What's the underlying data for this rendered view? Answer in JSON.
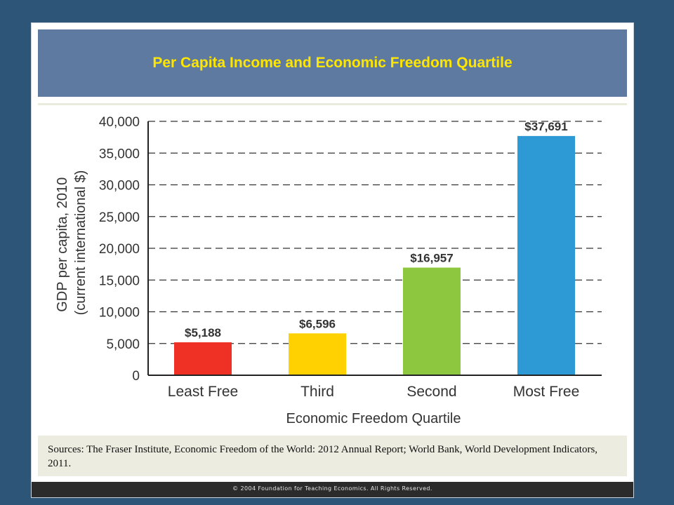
{
  "title": "Per Capita Income and Economic Freedom Quartile",
  "sources": "Sources:  The Fraser Institute, Economic Freedom of the World: 2012 Annual Report; World Bank, World Development Indicators, 2011.",
  "copyright": "© 2004 Foundation for Teaching Economics. All Rights Reserved.",
  "colors": {
    "background": "#2d5577",
    "title_band": "#5e7aa0",
    "title_text": "#ffe600"
  },
  "chart_data": {
    "type": "bar",
    "categories": [
      "Least Free",
      "Third",
      "Second",
      "Most Free"
    ],
    "values": [
      5188,
      6596,
      16957,
      37691
    ],
    "value_labels": [
      "$5,188",
      "$6,596",
      "$16,957",
      "$37,691"
    ],
    "bar_colors": [
      "#ee3124",
      "#ffd100",
      "#8dc63f",
      "#2e9ad5"
    ],
    "title": "Per Capita Income and Economic Freedom Quartile",
    "xlabel": "Economic Freedom Quartile",
    "ylabel_lines": [
      "GDP per capita, 2010",
      "(current international $)"
    ],
    "ylim": [
      0,
      40000
    ],
    "yticks": [
      0,
      5000,
      10000,
      15000,
      20000,
      25000,
      30000,
      35000,
      40000
    ],
    "ytick_labels": [
      "0",
      "5,000",
      "10,000",
      "15,000",
      "20,000",
      "25,000",
      "30,000",
      "35,000",
      "40,000"
    ],
    "grid": "dashed horizontal",
    "legend": "none"
  }
}
